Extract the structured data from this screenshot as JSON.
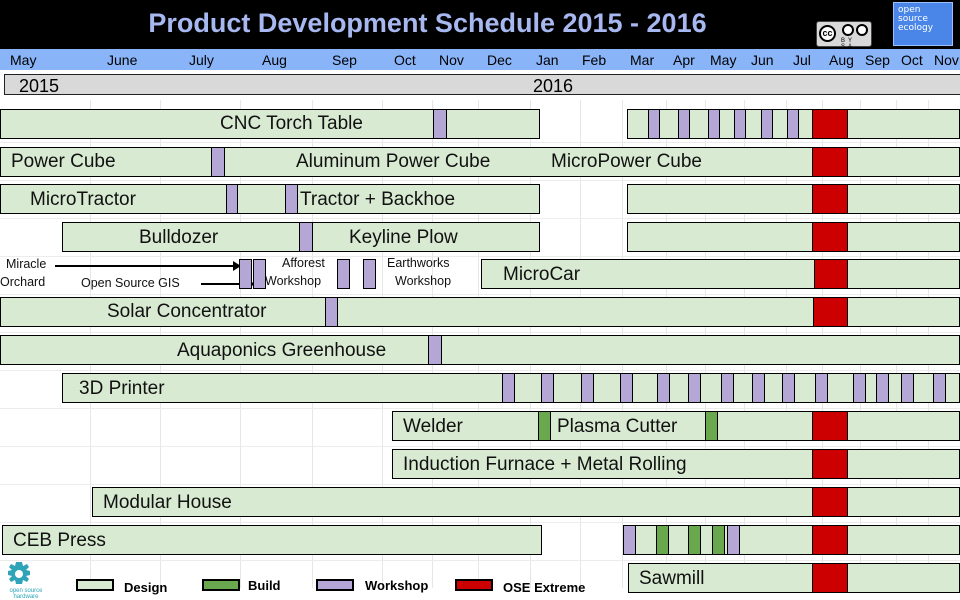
{
  "title": "Product Development Schedule 2015 - 2016",
  "license_badge": {
    "mark": "cc",
    "sub": "BY SA",
    "icons": [
      "cc-icon",
      "by-icon",
      "sa-icon"
    ]
  },
  "logo": {
    "text_lines": [
      "open",
      "source",
      "ecology"
    ]
  },
  "months": [
    "May",
    "June",
    "July",
    "Aug",
    "Sep",
    "Oct",
    "Nov",
    "Dec",
    "Jan",
    "Feb",
    "Mar",
    "Apr",
    "May",
    "Jun",
    "Jul",
    "Aug",
    "Sep",
    "Oct",
    "Nov"
  ],
  "years": [
    "2015",
    "2016"
  ],
  "rows": [
    {
      "label": "CNC Torch Table"
    },
    {
      "labels": [
        "Power Cube",
        "Aluminum Power Cube",
        "MicroPower Cube"
      ]
    },
    {
      "labels": [
        "MicroTractor",
        "Tractor + Backhoe"
      ]
    },
    {
      "labels": [
        "Bulldozer",
        "Keyline Plow"
      ]
    },
    {
      "labels": [
        "Miracle",
        "Orchard",
        "Open Source GIS",
        "Afforest",
        "Workshop",
        "Earthworks",
        "Workshop",
        "MicroCar"
      ]
    },
    {
      "label": "Solar Concentrator"
    },
    {
      "label": "Aquaponics Greenhouse"
    },
    {
      "label": "3D Printer"
    },
    {
      "labels": [
        "Welder",
        "Plasma Cutter"
      ]
    },
    {
      "label": "Induction Furnace + Metal Rolling"
    },
    {
      "label": "Modular House"
    },
    {
      "label": "CEB Press"
    },
    {
      "label": "Sawmill"
    }
  ],
  "legend": [
    {
      "label": "Design",
      "color": "#d9ead3"
    },
    {
      "label": "Build",
      "color": "#6aa84f"
    },
    {
      "label": "Workshop",
      "color": "#b4a7d6"
    },
    {
      "label": "OSE Extreme",
      "color": "#cc0000"
    }
  ],
  "corner_logo": {
    "text_lines": [
      "open source",
      "hardware"
    ]
  }
}
